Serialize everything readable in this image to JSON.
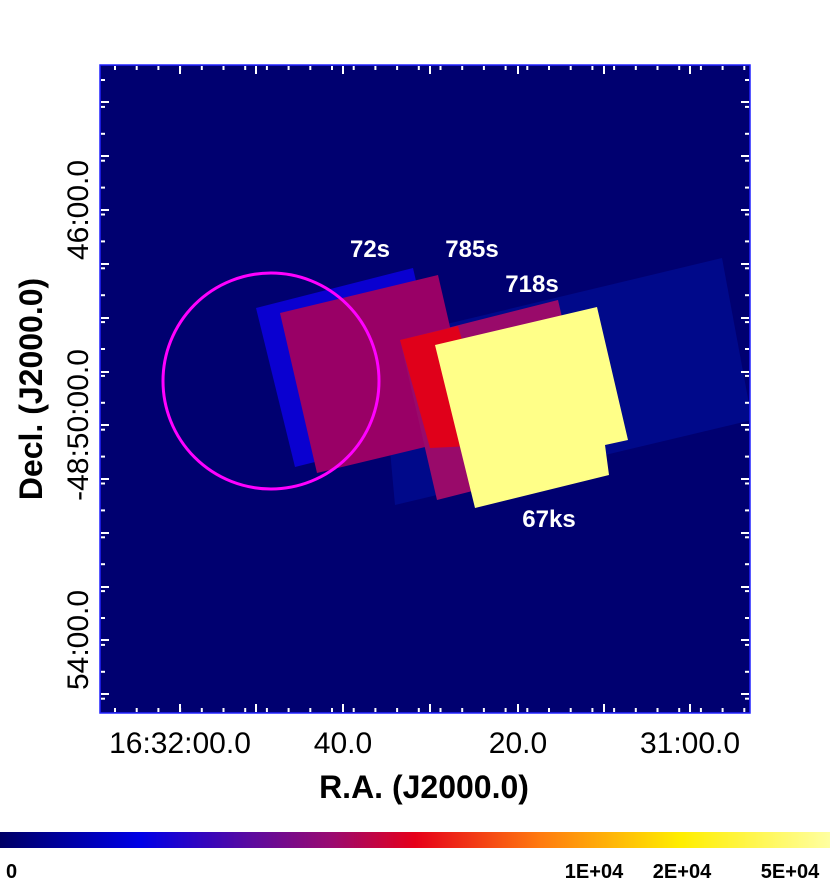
{
  "chart_data": {
    "type": "image",
    "xlabel": "R.A. (J2000.0)",
    "ylabel": "Decl. (J2000.0)",
    "xtick_labels": [
      "16:32:00.0",
      "40.0",
      "20.0",
      "31:00.0"
    ],
    "ytick_labels": [
      "46:00.0",
      "-48:50:00.0",
      "54:00.0"
    ],
    "annotations": [
      "72s",
      "785s",
      "718s",
      "67ks"
    ],
    "colorbar_labels": [
      "0",
      "1E+04",
      "2E+04",
      "5E+04"
    ]
  }
}
